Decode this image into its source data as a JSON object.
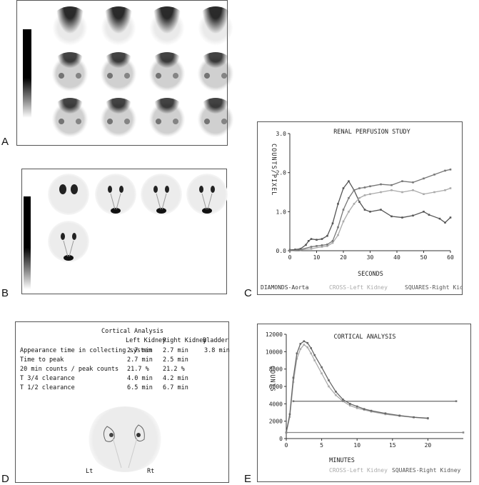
{
  "panels": {
    "a": {
      "label": "A"
    },
    "b": {
      "label": "B"
    },
    "c": {
      "label": "C"
    },
    "d": {
      "label": "D"
    },
    "e": {
      "label": "E"
    }
  },
  "table": {
    "title": "Cortical Analysis",
    "headers": [
      "Left Kidney",
      "Right Kidney",
      "Bladder"
    ],
    "rows": [
      {
        "label": "Appearance time in collecting system",
        "left": "2.7 min",
        "right": "2.7 min",
        "bladder": "3.8 min"
      },
      {
        "label": "Time to peak",
        "left": "2.7 min",
        "right": "2.5 min",
        "bladder": ""
      },
      {
        "label": "20 min counts / peak counts",
        "left": "21.7 %",
        "right": "21.2 %",
        "bladder": ""
      },
      {
        "label": "T 3/4 clearance",
        "left": "4.0 min",
        "right": "4.2 min",
        "bladder": ""
      },
      {
        "label": "T 1/2 clearance",
        "left": "6.5 min",
        "right": "6.7 min",
        "bladder": ""
      }
    ],
    "image_labels": {
      "left": "Lt",
      "right": "Rt"
    }
  },
  "chart_data": [
    {
      "type": "line",
      "title": "RENAL PERFUSION STUDY",
      "xlabel": "SECONDS",
      "ylabel": "COUNTS/PIXEL",
      "xlim": [
        0,
        60
      ],
      "ylim": [
        0,
        3.0
      ],
      "xticks": [
        0,
        10,
        20,
        30,
        40,
        50,
        60
      ],
      "yticks": [
        "0.0",
        "1.0",
        "2.0",
        "3.0"
      ],
      "legend": [
        "DIAMONDS-Aorta",
        "CROSS-Left Kidney",
        "SQUARES-Right Kidney"
      ],
      "series": [
        {
          "name": "DIAMONDS-Aorta",
          "color": "#555555",
          "x": [
            0,
            2,
            4,
            6,
            7,
            8,
            10,
            12,
            14,
            16,
            18,
            20,
            22,
            24,
            26,
            28,
            30,
            34,
            38,
            42,
            46,
            50,
            52,
            56,
            58,
            60
          ],
          "y": [
            0.02,
            0.03,
            0.05,
            0.15,
            0.25,
            0.3,
            0.28,
            0.3,
            0.38,
            0.7,
            1.2,
            1.6,
            1.78,
            1.55,
            1.25,
            1.05,
            1.0,
            1.05,
            0.88,
            0.85,
            0.9,
            1.0,
            0.92,
            0.82,
            0.72,
            0.85
          ]
        },
        {
          "name": "CROSS-Left Kidney",
          "color": "#aaaaaa",
          "x": [
            0,
            4,
            8,
            12,
            14,
            16,
            18,
            20,
            22,
            24,
            26,
            28,
            30,
            34,
            38,
            42,
            46,
            50,
            54,
            58,
            60
          ],
          "y": [
            0.0,
            0.02,
            0.05,
            0.1,
            0.12,
            0.2,
            0.4,
            0.75,
            1.0,
            1.2,
            1.35,
            1.42,
            1.45,
            1.5,
            1.55,
            1.5,
            1.55,
            1.45,
            1.5,
            1.55,
            1.6
          ]
        },
        {
          "name": "SQUARES-Right Kidney",
          "color": "#777777",
          "x": [
            0,
            4,
            8,
            10,
            12,
            14,
            16,
            18,
            20,
            22,
            24,
            26,
            28,
            30,
            34,
            38,
            42,
            46,
            50,
            54,
            58,
            60
          ],
          "y": [
            0.0,
            0.03,
            0.1,
            0.12,
            0.14,
            0.16,
            0.25,
            0.6,
            1.05,
            1.35,
            1.55,
            1.6,
            1.62,
            1.65,
            1.7,
            1.68,
            1.78,
            1.75,
            1.85,
            1.95,
            2.05,
            2.08
          ]
        }
      ]
    },
    {
      "type": "line",
      "title": "CORTICAL ANALYSIS",
      "xlabel": "MINUTES",
      "ylabel": "COUNTS",
      "xlim": [
        0,
        25
      ],
      "ylim": [
        0,
        12000
      ],
      "xticks": [
        0,
        5,
        10,
        15,
        20
      ],
      "yticks": [
        0,
        2000,
        4000,
        6000,
        8000,
        10000,
        12000
      ],
      "legend": [
        "CROSS-Left Kidney",
        "SQUARES-Right Kidney"
      ],
      "series": [
        {
          "name": "CROSS-Left Kidney",
          "color": "#aaaaaa",
          "x": [
            0,
            0.5,
            1,
            1.5,
            2,
            2.5,
            3,
            3.5,
            4,
            5,
            6,
            7,
            8,
            9,
            10,
            11,
            12,
            14,
            16,
            18,
            20
          ],
          "y": [
            700,
            2500,
            6500,
            9200,
            10300,
            10800,
            10500,
            9800,
            9000,
            7500,
            6000,
            5000,
            4300,
            3800,
            3500,
            3300,
            3100,
            2800,
            2600,
            2450,
            2300
          ]
        },
        {
          "name": "SQUARES-Right Kidney",
          "color": "#666666",
          "x": [
            0,
            0.5,
            1,
            1.5,
            2,
            2.5,
            3,
            3.5,
            4,
            5,
            6,
            7,
            8,
            9,
            10,
            11,
            12,
            14,
            16,
            18,
            20
          ],
          "y": [
            700,
            2800,
            7000,
            9800,
            10900,
            11200,
            11000,
            10400,
            9600,
            8200,
            6700,
            5400,
            4500,
            4000,
            3700,
            3400,
            3200,
            2900,
            2650,
            2450,
            2350
          ]
        },
        {
          "name": "",
          "color": "#777777",
          "x": [
            1,
            24
          ],
          "y": [
            4300,
            4300
          ]
        },
        {
          "name": "",
          "color": "#888888",
          "x": [
            0,
            25
          ],
          "y": [
            700,
            700
          ]
        }
      ]
    }
  ]
}
